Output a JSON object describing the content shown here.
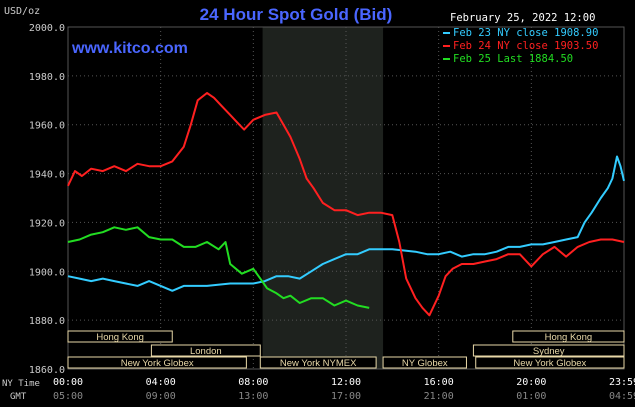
{
  "header": {
    "units": "USD/oz",
    "title": "24 Hour Spot Gold (Bid)",
    "date": "February 25, 2022 12:00",
    "site": "www.kitco.com"
  },
  "timezones": {
    "ny_label": "NY Time",
    "gmt_label": "GMT"
  },
  "colors": {
    "title": "#4a66ff",
    "site": "#4a66ff",
    "grid": "#555555",
    "axis_text": "#cccccc",
    "session_fill": "#1e221e",
    "market_box": "#e8d8a8"
  },
  "chart_data": {
    "type": "line",
    "title": "24 Hour Spot Gold (Bid)",
    "ylabel": "USD/oz",
    "ylim": [
      1860,
      2000
    ],
    "yticks": [
      "2000.0",
      "1980.0",
      "1960.0",
      "1940.0",
      "1920.0",
      "1900.0",
      "1880.0",
      "1860.0"
    ],
    "xlim": [
      0,
      24
    ],
    "xticks_ny": [
      "00:00",
      "04:00",
      "08:00",
      "12:00",
      "16:00",
      "20:00",
      "23:59"
    ],
    "xticks_gmt": [
      "05:00",
      "09:00",
      "13:00",
      "17:00",
      "21:00",
      "01:00",
      "04:59"
    ],
    "xtick_hours": [
      0,
      4,
      8,
      12,
      16,
      20,
      24
    ],
    "grid": true,
    "legend_position": "top-right",
    "shaded_session": [
      8.4,
      13.6
    ],
    "series": [
      {
        "name": "Feb 23 NY close 1908.90",
        "color": "#33ccff",
        "points": [
          [
            0,
            1898
          ],
          [
            0.5,
            1897
          ],
          [
            1,
            1896
          ],
          [
            1.5,
            1897
          ],
          [
            2,
            1896
          ],
          [
            3,
            1894
          ],
          [
            3.5,
            1896
          ],
          [
            4,
            1894
          ],
          [
            4.5,
            1892
          ],
          [
            5,
            1894
          ],
          [
            6,
            1894
          ],
          [
            7,
            1895
          ],
          [
            8,
            1895
          ],
          [
            8.5,
            1896
          ],
          [
            9,
            1898
          ],
          [
            9.5,
            1898
          ],
          [
            10,
            1897
          ],
          [
            10.5,
            1900
          ],
          [
            11,
            1903
          ],
          [
            11.5,
            1905
          ],
          [
            12,
            1907
          ],
          [
            12.5,
            1907
          ],
          [
            13,
            1909
          ],
          [
            14,
            1909
          ],
          [
            15,
            1908
          ],
          [
            15.5,
            1907
          ],
          [
            16,
            1907
          ],
          [
            16.5,
            1908
          ],
          [
            17,
            1906
          ],
          [
            17.5,
            1907
          ],
          [
            18,
            1907
          ],
          [
            18.5,
            1908
          ],
          [
            19,
            1910
          ],
          [
            19.5,
            1910
          ],
          [
            20,
            1911
          ],
          [
            20.5,
            1911
          ],
          [
            21,
            1912
          ],
          [
            21.5,
            1913
          ],
          [
            22,
            1914
          ],
          [
            22.3,
            1920
          ],
          [
            22.6,
            1924
          ],
          [
            23,
            1930
          ],
          [
            23.3,
            1934
          ],
          [
            23.5,
            1938
          ],
          [
            23.7,
            1947
          ],
          [
            23.85,
            1943
          ],
          [
            24,
            1937
          ]
        ]
      },
      {
        "name": "Feb 24 NY close 1903.50",
        "color": "#ff2020",
        "points": [
          [
            0,
            1935
          ],
          [
            0.3,
            1941
          ],
          [
            0.6,
            1939
          ],
          [
            1,
            1942
          ],
          [
            1.5,
            1941
          ],
          [
            2,
            1943
          ],
          [
            2.5,
            1941
          ],
          [
            3,
            1944
          ],
          [
            3.5,
            1943
          ],
          [
            4,
            1943
          ],
          [
            4.5,
            1945
          ],
          [
            5,
            1951
          ],
          [
            5.3,
            1960
          ],
          [
            5.6,
            1970
          ],
          [
            6,
            1973
          ],
          [
            6.3,
            1971
          ],
          [
            6.6,
            1968
          ],
          [
            7,
            1964
          ],
          [
            7.3,
            1961
          ],
          [
            7.6,
            1958
          ],
          [
            8,
            1962
          ],
          [
            8.5,
            1964
          ],
          [
            9,
            1965
          ],
          [
            9.3,
            1960
          ],
          [
            9.6,
            1955
          ],
          [
            10,
            1946
          ],
          [
            10.3,
            1938
          ],
          [
            10.6,
            1934
          ],
          [
            11,
            1928
          ],
          [
            11.5,
            1925
          ],
          [
            12,
            1925
          ],
          [
            12.5,
            1923
          ],
          [
            13,
            1924
          ],
          [
            13.5,
            1924
          ],
          [
            14,
            1923
          ],
          [
            14.3,
            1912
          ],
          [
            14.6,
            1897
          ],
          [
            15,
            1889
          ],
          [
            15.3,
            1885
          ],
          [
            15.6,
            1882
          ],
          [
            16,
            1890
          ],
          [
            16.3,
            1898
          ],
          [
            16.6,
            1901
          ],
          [
            17,
            1903
          ],
          [
            17.5,
            1903
          ],
          [
            18,
            1904
          ],
          [
            18.5,
            1905
          ],
          [
            19,
            1907
          ],
          [
            19.5,
            1907
          ],
          [
            20,
            1902
          ],
          [
            20.5,
            1907
          ],
          [
            21,
            1910
          ],
          [
            21.5,
            1906
          ],
          [
            22,
            1910
          ],
          [
            22.5,
            1912
          ],
          [
            23,
            1913
          ],
          [
            23.5,
            1913
          ],
          [
            24,
            1912
          ]
        ]
      },
      {
        "name": "Feb 25 Last 1884.50",
        "color": "#22dd22",
        "points": [
          [
            0,
            1912
          ],
          [
            0.5,
            1913
          ],
          [
            1,
            1915
          ],
          [
            1.5,
            1916
          ],
          [
            2,
            1918
          ],
          [
            2.5,
            1917
          ],
          [
            3,
            1918
          ],
          [
            3.5,
            1914
          ],
          [
            4,
            1913
          ],
          [
            4.5,
            1913
          ],
          [
            5,
            1910
          ],
          [
            5.5,
            1910
          ],
          [
            6,
            1912
          ],
          [
            6.5,
            1909
          ],
          [
            6.8,
            1912
          ],
          [
            7,
            1903
          ],
          [
            7.5,
            1899
          ],
          [
            8,
            1901
          ],
          [
            8.3,
            1897
          ],
          [
            8.6,
            1893
          ],
          [
            9,
            1891
          ],
          [
            9.3,
            1889
          ],
          [
            9.6,
            1890
          ],
          [
            10,
            1887
          ],
          [
            10.5,
            1889
          ],
          [
            11,
            1889
          ],
          [
            11.5,
            1886
          ],
          [
            12,
            1888
          ],
          [
            12.5,
            1886
          ],
          [
            13,
            1885
          ]
        ]
      }
    ],
    "markets": [
      {
        "name": "Hong Kong",
        "start": 0,
        "end": 4.5,
        "row": 0
      },
      {
        "name": "Hong Kong",
        "start": 19.2,
        "end": 24,
        "row": 0
      },
      {
        "name": "London",
        "start": 3.6,
        "end": 8.3,
        "row": 1
      },
      {
        "name": "Sydney",
        "start": 17.5,
        "end": 24,
        "row": 1
      },
      {
        "name": "New York Globex",
        "start": 0,
        "end": 7.7,
        "row": 2
      },
      {
        "name": "New York NYMEX",
        "start": 8.3,
        "end": 13.3,
        "row": 2
      },
      {
        "name": "NY Globex",
        "start": 13.6,
        "end": 17.2,
        "row": 2
      },
      {
        "name": "New York Globex",
        "start": 17.6,
        "end": 24,
        "row": 2
      }
    ]
  }
}
